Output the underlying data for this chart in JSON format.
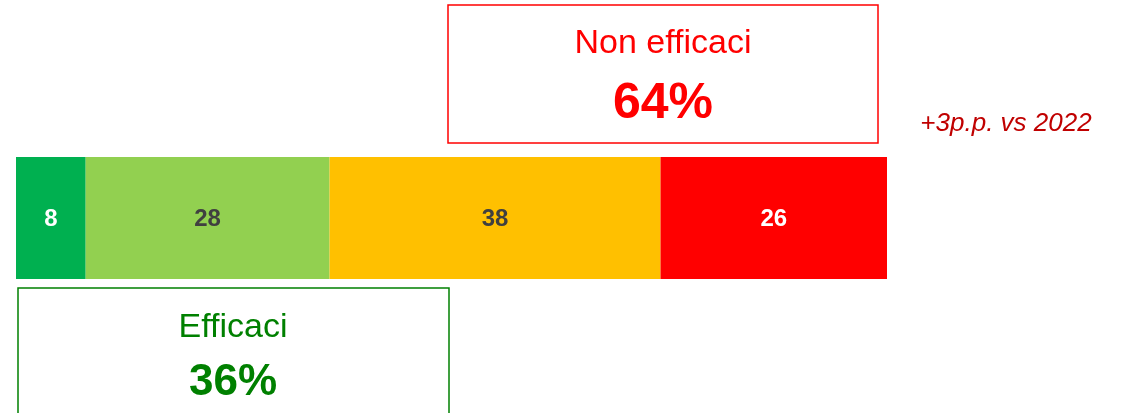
{
  "chart_data": {
    "type": "bar",
    "orientation": "horizontal",
    "stacked": true,
    "categories": [
      null
    ],
    "xlim": [
      0,
      100
    ],
    "data_labels": true,
    "series": [
      {
        "color": "#00b050",
        "values": [
          8
        ]
      },
      {
        "color": "#92d050",
        "values": [
          28
        ]
      },
      {
        "color": "#ffc000",
        "values": [
          38
        ]
      },
      {
        "color": "#ff0000",
        "values": [
          26
        ]
      }
    ],
    "annotations": [
      "Non efficaci",
      "64%",
      "+3p.p. vs 2022",
      "Efficaci",
      "36%"
    ]
  }
}
